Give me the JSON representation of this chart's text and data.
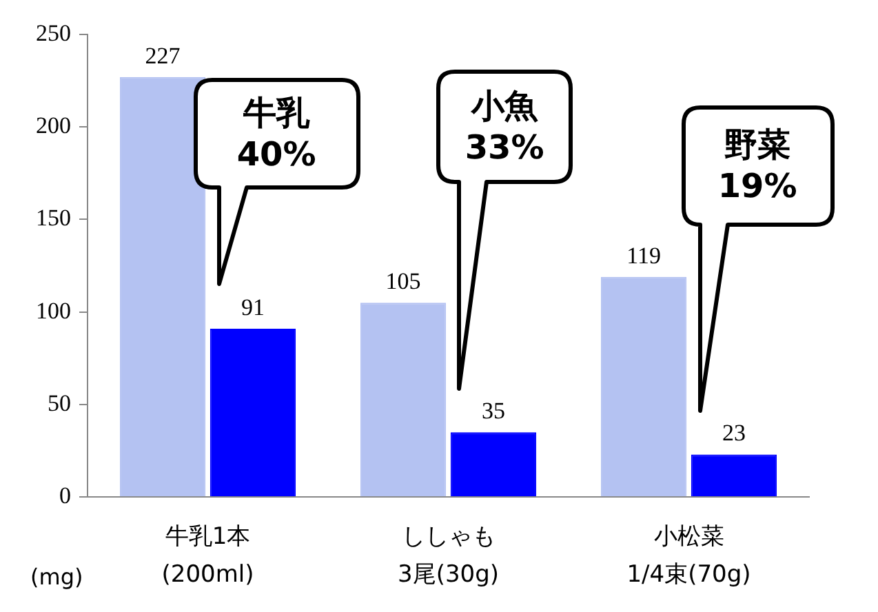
{
  "chart_data": {
    "type": "bar",
    "ylabel": "(mg)",
    "categories": [
      "牛乳1本\n(200ml)",
      "ししゃも\n3尾(30g)",
      "小松菜\n1/4束(70g)"
    ],
    "series": [
      {
        "color": "#b4c2f2",
        "values": [
          227,
          105,
          119
        ]
      },
      {
        "color": "#0000ff",
        "values": [
          91,
          35,
          23
        ]
      }
    ],
    "ylim": [
      0,
      250
    ],
    "yticks": [
      0,
      50,
      100,
      150,
      200,
      250
    ],
    "grid": false,
    "legend": false,
    "data_labels": true,
    "annotations": [
      "牛乳\n40%",
      "小魚\n33%",
      "野菜\n19%"
    ]
  }
}
